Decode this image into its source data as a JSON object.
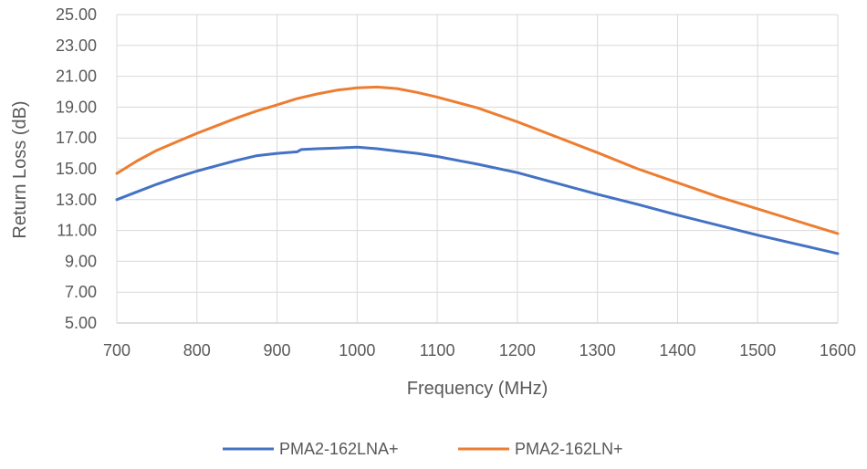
{
  "chart_data": {
    "type": "line",
    "title": "",
    "xlabel": "Frequency (MHz)",
    "ylabel": "Return Loss (dB)",
    "xlim": [
      700,
      1600
    ],
    "ylim": [
      5,
      25
    ],
    "x_ticks": [
      "700",
      "800",
      "900",
      "1000",
      "1100",
      "1200",
      "1300",
      "1400",
      "1500",
      "1600"
    ],
    "y_ticks": [
      "5.00",
      "7.00",
      "9.00",
      "11.00",
      "13.00",
      "15.00",
      "17.00",
      "19.00",
      "21.00",
      "23.00",
      "25.00"
    ],
    "grid": "horizontal",
    "legend_position": "bottom",
    "series": [
      {
        "name": "PMA2-162LNA+",
        "color": "#4472C4",
        "x": [
          700,
          725,
          750,
          775,
          800,
          825,
          850,
          875,
          900,
          925,
          930,
          950,
          975,
          1000,
          1025,
          1050,
          1075,
          1100,
          1150,
          1200,
          1250,
          1300,
          1350,
          1400,
          1450,
          1500,
          1550,
          1600
        ],
        "y": [
          13.0,
          13.5,
          14.0,
          14.45,
          14.85,
          15.2,
          15.55,
          15.85,
          16.0,
          16.1,
          16.25,
          16.3,
          16.35,
          16.4,
          16.3,
          16.15,
          16.0,
          15.8,
          15.3,
          14.75,
          14.05,
          13.35,
          12.7,
          12.0,
          11.35,
          10.7,
          10.1,
          9.5
        ]
      },
      {
        "name": "PMA2-162LN+",
        "color": "#ED7D31",
        "x": [
          700,
          725,
          750,
          775,
          800,
          825,
          850,
          875,
          900,
          925,
          950,
          975,
          1000,
          1025,
          1050,
          1075,
          1100,
          1150,
          1200,
          1250,
          1300,
          1350,
          1400,
          1450,
          1500,
          1550,
          1600
        ],
        "y": [
          14.7,
          15.5,
          16.2,
          16.75,
          17.3,
          17.8,
          18.3,
          18.75,
          19.15,
          19.55,
          19.85,
          20.1,
          20.25,
          20.3,
          20.2,
          19.95,
          19.65,
          18.95,
          18.05,
          17.05,
          16.05,
          15.0,
          14.1,
          13.2,
          12.4,
          11.6,
          10.8
        ]
      }
    ]
  }
}
